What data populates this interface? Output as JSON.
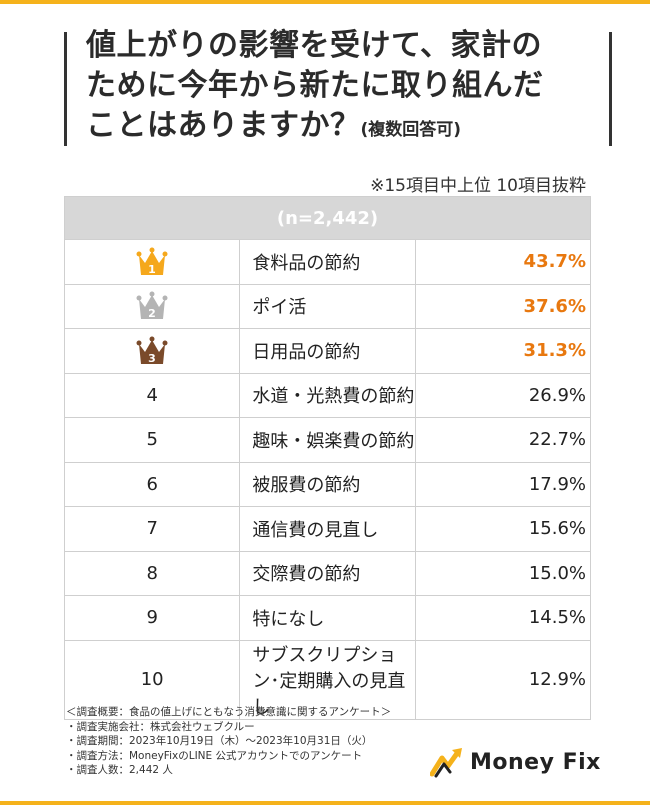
{
  "title": {
    "line1": "値上がりの影響を受けて、家計の",
    "line2": "ために今年から新たに取り組んだ",
    "line3": "ことはありますか？",
    "sub": "(複数回答可)"
  },
  "note": "※15項目中上位 10項目抜粋",
  "table": {
    "header": "(n=2,442)",
    "rows": [
      {
        "rank": "1",
        "item": "食料品の節約",
        "pct": "43.7%"
      },
      {
        "rank": "2",
        "item": "ポイ活",
        "pct": "37.6%"
      },
      {
        "rank": "3",
        "item": "日用品の節約",
        "pct": "31.3%"
      },
      {
        "rank": "4",
        "item": "水道・光熱費の節約",
        "pct": "26.9%"
      },
      {
        "rank": "5",
        "item": "趣味・娯楽費の節約",
        "pct": "22.7%"
      },
      {
        "rank": "6",
        "item": "被服費の節約",
        "pct": "17.9%"
      },
      {
        "rank": "7",
        "item": "通信費の見直し",
        "pct": "15.6%"
      },
      {
        "rank": "8",
        "item": "交際費の節約",
        "pct": "15.0%"
      },
      {
        "rank": "9",
        "item": "特になし",
        "pct": "14.5%"
      },
      {
        "rank": "10",
        "item": "サブスクリプション･定期購入の見直し",
        "pct": "12.9%"
      }
    ]
  },
  "footnotes": [
    "＜調査概要：食品の値上げにともなう消費意識に関するアンケート＞",
    "・調査実施会社：株式会社ウェブクルー",
    "・調査期間：2023年10月19日（木）〜2023年10月31日（火）",
    "・調査方法：MoneyFixのLINE 公式アカウントでのアンケート",
    "・調査人数：2,442 人"
  ],
  "logo": "Money Fix",
  "colors": {
    "accent": "#f5b21b",
    "highlight": "#e8780f",
    "gold": "#f5a81c",
    "silver": "#b4b4b4",
    "bronze": "#7a4a2a"
  }
}
